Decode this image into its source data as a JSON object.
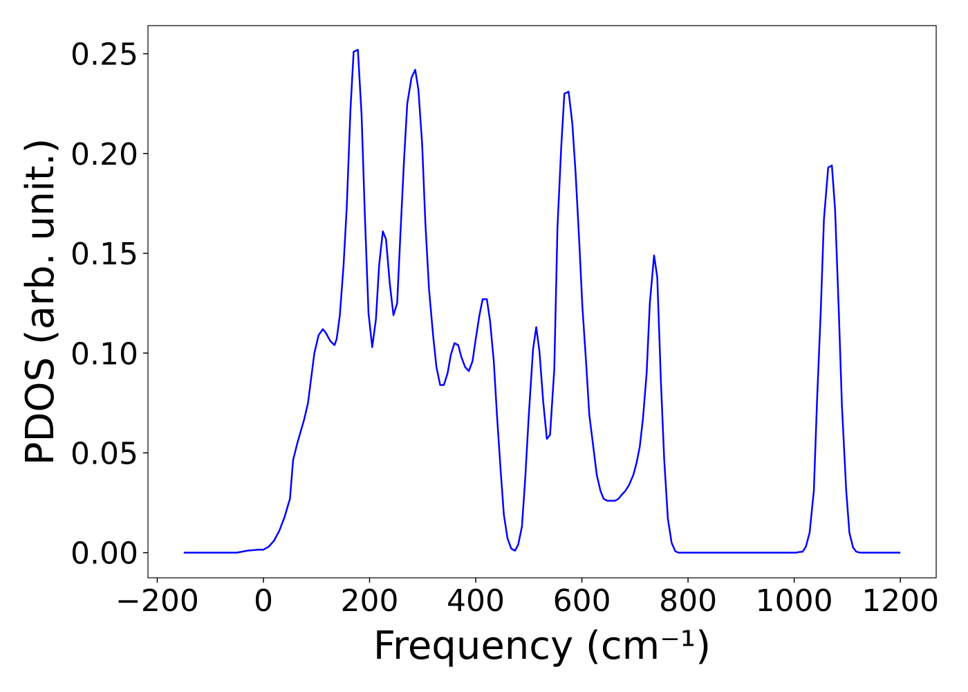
{
  "chart_data": {
    "type": "line",
    "xlabel": "Frequency (cm⁻¹)",
    "ylabel": "PDOS (arb. unit.)",
    "color": "#0000ff",
    "x": [
      -150,
      -50,
      -30,
      -10,
      0,
      10,
      20,
      30,
      40,
      50,
      56,
      64,
      77,
      84,
      96,
      104,
      112,
      118,
      126,
      134,
      138,
      144,
      151,
      157,
      164,
      170,
      178,
      185,
      191,
      198,
      205,
      212,
      218,
      225,
      231,
      238,
      245,
      252,
      258,
      265,
      271,
      279,
      286,
      292,
      299,
      305,
      312,
      320,
      326,
      333,
      340,
      347,
      353,
      360,
      367,
      373,
      380,
      387,
      394,
      400,
      407,
      413,
      421,
      427,
      434,
      440,
      447,
      453,
      460,
      467,
      474,
      480,
      487,
      493,
      500,
      508,
      514,
      520,
      527,
      534,
      540,
      548,
      554,
      561,
      567,
      575,
      582,
      588,
      595,
      601,
      608,
      614,
      622,
      628,
      635,
      641,
      648,
      656,
      662,
      669,
      675,
      682,
      689,
      697,
      703,
      709,
      715,
      722,
      728,
      736,
      742,
      749,
      755,
      762,
      769,
      776,
      782,
      1003,
      1009,
      1016,
      1022,
      1029,
      1037,
      1043,
      1050,
      1056,
      1064,
      1071,
      1077,
      1084,
      1090,
      1098,
      1104,
      1111,
      1117,
      1124,
      1200
    ],
    "values": [
      0,
      0,
      0.001,
      0.0015,
      0.0015,
      0.003,
      0.006,
      0.011,
      0.018,
      0.027,
      0.0465,
      0.055,
      0.067,
      0.075,
      0.1,
      0.109,
      0.112,
      0.11,
      0.106,
      0.104,
      0.107,
      0.119,
      0.144,
      0.173,
      0.222,
      0.251,
      0.252,
      0.219,
      0.17,
      0.12,
      0.103,
      0.117,
      0.144,
      0.161,
      0.157,
      0.135,
      0.119,
      0.125,
      0.159,
      0.197,
      0.225,
      0.238,
      0.242,
      0.232,
      0.205,
      0.166,
      0.132,
      0.108,
      0.093,
      0.084,
      0.084,
      0.09,
      0.099,
      0.105,
      0.104,
      0.098,
      0.093,
      0.091,
      0.096,
      0.107,
      0.119,
      0.127,
      0.127,
      0.116,
      0.096,
      0.069,
      0.041,
      0.019,
      0.007,
      0.002,
      0.001,
      0.004,
      0.013,
      0.036,
      0.069,
      0.102,
      0.113,
      0.101,
      0.076,
      0.057,
      0.059,
      0.092,
      0.163,
      0.203,
      0.23,
      0.231,
      0.215,
      0.191,
      0.156,
      0.123,
      0.095,
      0.069,
      0.052,
      0.039,
      0.031,
      0.027,
      0.026,
      0.026,
      0.026,
      0.027,
      0.029,
      0.031,
      0.034,
      0.039,
      0.045,
      0.053,
      0.067,
      0.09,
      0.125,
      0.149,
      0.138,
      0.085,
      0.047,
      0.017,
      0.005,
      0.0007,
      0,
      0,
      0.0003,
      0.0005,
      0.003,
      0.01,
      0.031,
      0.076,
      0.121,
      0.167,
      0.193,
      0.194,
      0.172,
      0.121,
      0.073,
      0.031,
      0.01,
      0.0025,
      0.0005,
      0,
      0
    ],
    "xlim": [
      -217.5,
      1267.5
    ],
    "xticks": [
      {
        "value": -200,
        "label": "−200"
      },
      0,
      200,
      400,
      600,
      800,
      1000,
      1200
    ],
    "ylim": [
      -0.0126,
      0.2641
    ],
    "yticks": [
      {
        "value": 0,
        "label": "0.00"
      },
      {
        "value": 0.05,
        "label": "0.05"
      },
      {
        "value": 0.1,
        "label": "0.10"
      },
      {
        "value": 0.15,
        "label": "0.15"
      },
      {
        "value": 0.2,
        "label": "0.20"
      },
      {
        "value": 0.25,
        "label": "0.25"
      }
    ],
    "grid": false
  }
}
